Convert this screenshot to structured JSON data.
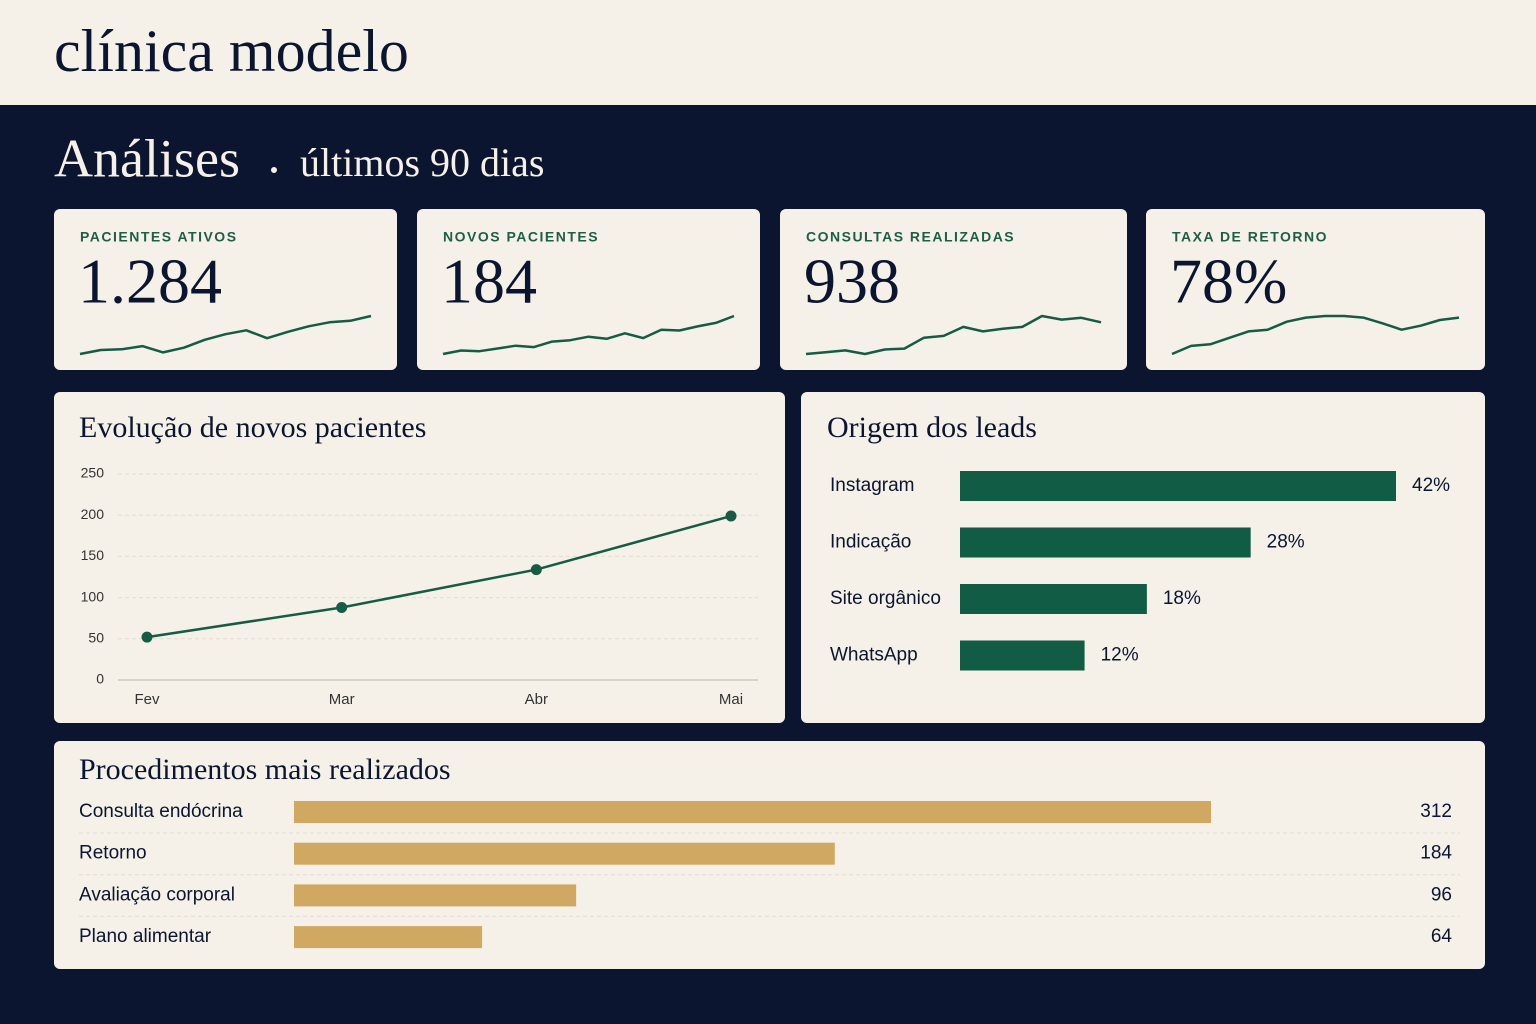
{
  "header": {
    "title": "clínica modelo"
  },
  "section": {
    "title": "Análises",
    "subtitle": "últimos 90 dias"
  },
  "kpis": [
    {
      "label": "PACIENTES ATIVOS",
      "value": "1.284",
      "trend": [
        10,
        15,
        16,
        20,
        12,
        18,
        28,
        35,
        40,
        30,
        38,
        45,
        50,
        52,
        58
      ]
    },
    {
      "label": "NOVOS PACIENTES",
      "value": "184",
      "trend": [
        10,
        15,
        14,
        18,
        22,
        20,
        28,
        30,
        35,
        32,
        40,
        33,
        45,
        44,
        50,
        55,
        65
      ]
    },
    {
      "label": "CONSULTAS REALIZADAS",
      "value": "938",
      "trend": [
        10,
        12,
        14,
        10,
        15,
        16,
        28,
        30,
        40,
        35,
        38,
        40,
        52,
        48,
        50,
        45
      ]
    },
    {
      "label": "TAXA DE RETORNO",
      "value": "78%",
      "trend": [
        10,
        20,
        22,
        30,
        38,
        40,
        50,
        55,
        57,
        57,
        55,
        48,
        40,
        45,
        52,
        55
      ]
    }
  ],
  "new_patients": {
    "type": "line",
    "title": "Evolução de novos pacientes",
    "categories": [
      "Fev",
      "Mar",
      "Abr",
      "Mai"
    ],
    "values": [
      52,
      88,
      134,
      199
    ],
    "color": "#155c45",
    "ylim": [
      0,
      250
    ],
    "yticks": [
      0,
      50,
      100,
      150,
      200,
      250
    ],
    "grid": true
  },
  "leads": {
    "type": "bar",
    "title": "Origem dos leads",
    "categories": [
      "Instagram",
      "Indicação",
      "Site orgânico",
      "WhatsApp"
    ],
    "values": [
      42,
      28,
      18,
      12
    ],
    "value_labels": [
      "42%",
      "28%",
      "18%",
      "12%"
    ],
    "color": "#105c45"
  },
  "procedures": {
    "type": "bar",
    "title": "Procedimentos mais realizados",
    "categories": [
      "Consulta endócrina",
      "Retorno",
      "Avaliação corporal",
      "Plano alimentar"
    ],
    "values": [
      312,
      184,
      96,
      64
    ],
    "color": "#d1a862"
  }
}
